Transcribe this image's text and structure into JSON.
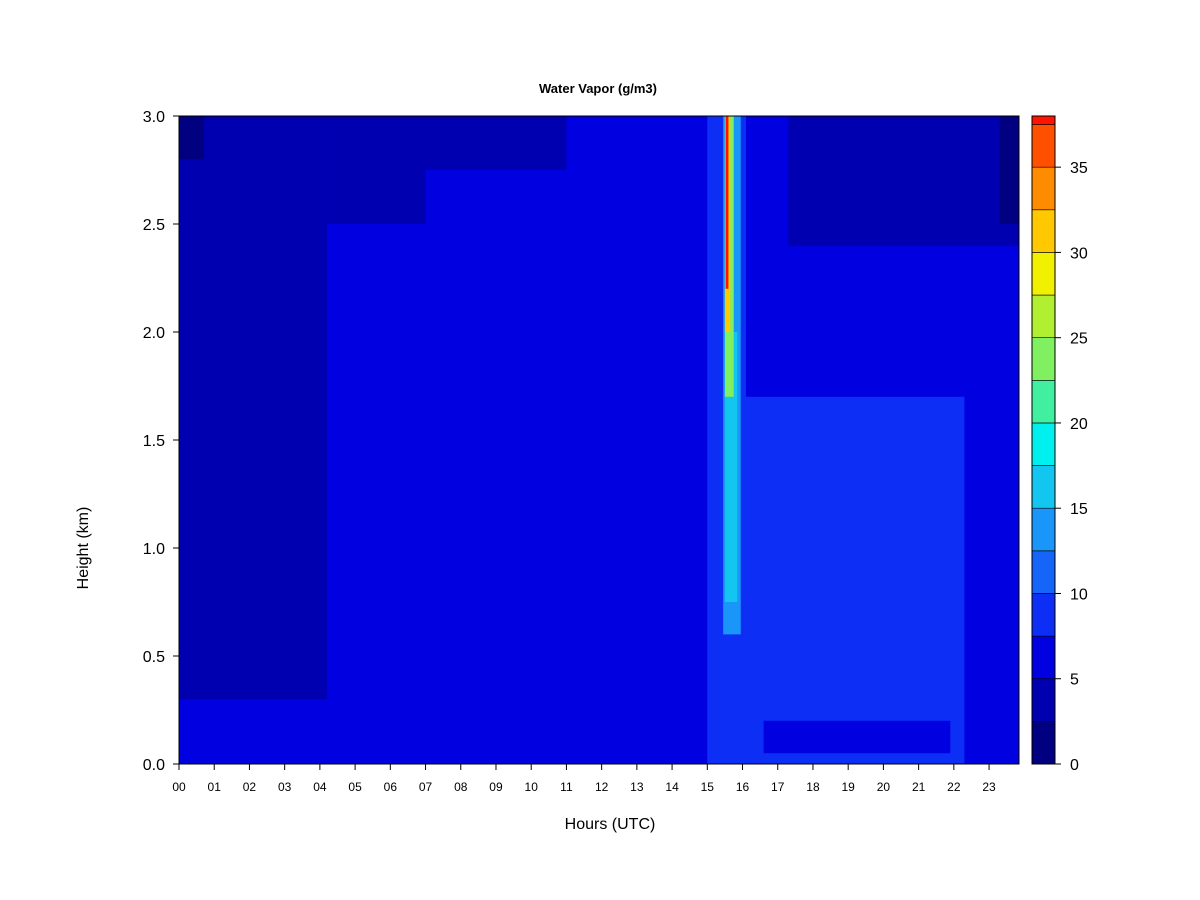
{
  "chart_data": {
    "type": "heatmap",
    "title": "Water Vapor (g/m3)",
    "xlabel": "Hours (UTC)",
    "ylabel": "Height (km)",
    "x_ticks": [
      "00",
      "01",
      "02",
      "03",
      "04",
      "05",
      "06",
      "07",
      "08",
      "09",
      "10",
      "11",
      "12",
      "13",
      "14",
      "15",
      "16",
      "17",
      "18",
      "19",
      "20",
      "21",
      "22",
      "23"
    ],
    "xlim": [
      0,
      23.85
    ],
    "y_ticks": [
      "0.0",
      "0.5",
      "1.0",
      "1.5",
      "2.0",
      "2.5",
      "3.0"
    ],
    "ylim": [
      0,
      3.0
    ],
    "colorbar": {
      "levels": [
        0,
        2.5,
        5,
        7.5,
        10,
        12.5,
        15,
        17.5,
        20,
        22.5,
        25,
        27.5,
        30,
        32.5,
        35,
        37.5
      ],
      "colors": [
        "#000080",
        "#0000B0",
        "#0000E0",
        "#0D2EF5",
        "#1565F8",
        "#1A96FA",
        "#12C6F0",
        "#00F0F0",
        "#40F0A0",
        "#80F060",
        "#B0F030",
        "#F0F000",
        "#FFC800",
        "#FF8C00",
        "#FF5000",
        "#FF1400",
        "#C80000",
        "#800000"
      ],
      "tick_labels": [
        "0",
        "5",
        "10",
        "15",
        "20",
        "25",
        "30",
        "35"
      ],
      "tick_values": [
        0,
        5,
        10,
        15,
        20,
        25,
        30,
        35
      ],
      "max": 38
    },
    "regions": [
      {
        "x0": 0,
        "x1": 23.85,
        "y0": 0,
        "y1": 3.0,
        "level": 2
      },
      {
        "x0": 0,
        "x1": 4.2,
        "y0": 0.3,
        "y1": 3.0,
        "level": 1
      },
      {
        "x0": 4.2,
        "x1": 7.0,
        "y0": 2.5,
        "y1": 3.0,
        "level": 1
      },
      {
        "x0": 7.0,
        "x1": 11.0,
        "y0": 2.75,
        "y1": 3.0,
        "level": 1
      },
      {
        "x0": 17.3,
        "x1": 23.85,
        "y0": 2.4,
        "y1": 3.0,
        "level": 1
      },
      {
        "x0": 0,
        "x1": 0.7,
        "y0": 2.8,
        "y1": 3.0,
        "level": 0
      },
      {
        "x0": 23.3,
        "x1": 23.85,
        "y0": 2.5,
        "y1": 3.0,
        "level": 0
      },
      {
        "x0": 15.0,
        "x1": 16.1,
        "y0": 0,
        "y1": 3.0,
        "level": 3
      },
      {
        "x0": 16.1,
        "x1": 22.3,
        "y0": 0,
        "y1": 1.7,
        "level": 3
      },
      {
        "x0": 16.6,
        "x1": 21.9,
        "y0": 0.05,
        "y1": 0.2,
        "level": 2
      },
      {
        "x0": 15.45,
        "x1": 15.95,
        "y0": 0.6,
        "y1": 3.0,
        "level": 5
      },
      {
        "x0": 15.5,
        "x1": 15.85,
        "y0": 0.75,
        "y1": 2.0,
        "level": 6
      },
      {
        "x0": 15.5,
        "x1": 15.75,
        "y0": 1.7,
        "y1": 3.0,
        "level": 9
      },
      {
        "x0": 15.5,
        "x1": 15.65,
        "y0": 2.0,
        "y1": 3.0,
        "level": 12
      },
      {
        "x0": 15.52,
        "x1": 15.6,
        "y0": 2.2,
        "y1": 3.0,
        "level": 15
      }
    ]
  }
}
